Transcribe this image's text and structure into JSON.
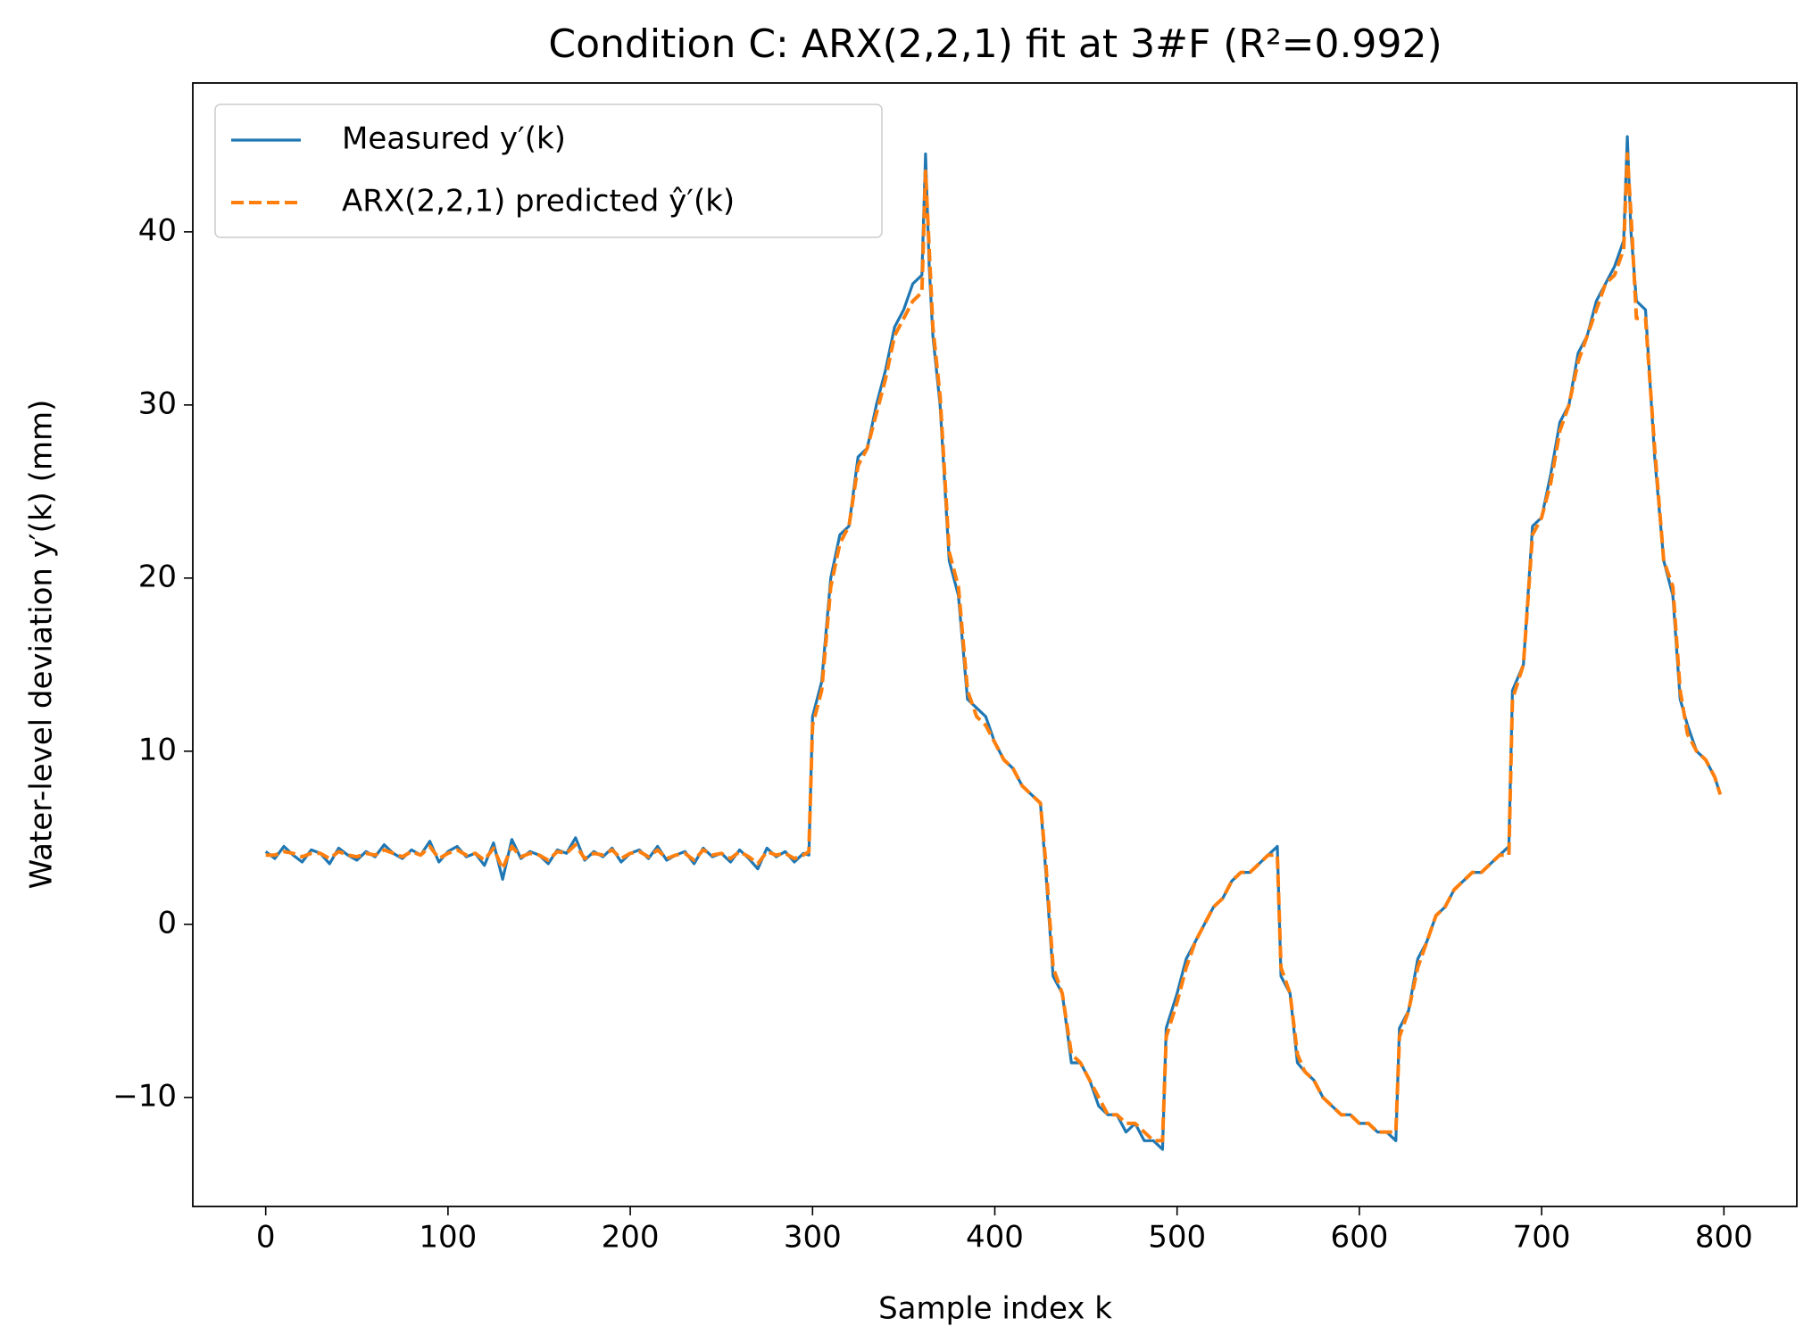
{
  "chart_data": {
    "type": "line",
    "title": "Condition C: ARX(2,2,1) fit at 3#F (R²=0.992)",
    "xlabel": "Sample index k",
    "ylabel": "Water-level deviation y′(k) (mm)",
    "legend": "upper left",
    "x": [
      0,
      5,
      10,
      15,
      20,
      25,
      30,
      35,
      40,
      45,
      50,
      55,
      60,
      65,
      70,
      75,
      80,
      85,
      90,
      95,
      100,
      105,
      110,
      115,
      120,
      125,
      130,
      135,
      140,
      145,
      150,
      155,
      160,
      165,
      170,
      175,
      180,
      185,
      190,
      195,
      200,
      205,
      210,
      215,
      220,
      225,
      230,
      235,
      240,
      245,
      250,
      255,
      260,
      265,
      270,
      275,
      280,
      285,
      290,
      295,
      298,
      300,
      305,
      310,
      315,
      320,
      325,
      330,
      335,
      340,
      345,
      350,
      355,
      360,
      362,
      364,
      366,
      370,
      375,
      380,
      385,
      390,
      395,
      400,
      405,
      410,
      415,
      420,
      425,
      428,
      432,
      437,
      442,
      447,
      452,
      457,
      462,
      467,
      472,
      477,
      482,
      487,
      492,
      494,
      500,
      505,
      510,
      515,
      520,
      525,
      530,
      535,
      540,
      545,
      550,
      555,
      557,
      562,
      566,
      570,
      575,
      580,
      585,
      590,
      595,
      600,
      605,
      610,
      615,
      620,
      622,
      627,
      632,
      637,
      642,
      647,
      652,
      657,
      662,
      667,
      672,
      677,
      682,
      684,
      690,
      695,
      700,
      705,
      710,
      715,
      720,
      725,
      730,
      735,
      740,
      745,
      747,
      749,
      752,
      757,
      762,
      767,
      772,
      776,
      780,
      785,
      790,
      795,
      798
    ],
    "series": [
      {
        "name": "Measured y′(k)",
        "color": "#1f77b4",
        "linestyle": "solid",
        "values": [
          4.2,
          3.8,
          4.5,
          4.0,
          3.6,
          4.3,
          4.1,
          3.5,
          4.4,
          4.0,
          3.7,
          4.2,
          3.9,
          4.6,
          4.1,
          3.8,
          4.3,
          4.0,
          4.8,
          3.6,
          4.2,
          4.5,
          3.9,
          4.1,
          3.4,
          4.7,
          2.6,
          4.9,
          3.8,
          4.2,
          4.0,
          3.5,
          4.3,
          4.1,
          5.0,
          3.7,
          4.2,
          3.9,
          4.4,
          3.6,
          4.1,
          4.3,
          3.8,
          4.5,
          3.7,
          4.0,
          4.2,
          3.5,
          4.4,
          3.9,
          4.1,
          3.6,
          4.3,
          3.8,
          3.2,
          4.4,
          3.9,
          4.2,
          3.6,
          4.1,
          4.0,
          12.0,
          14.0,
          20.0,
          22.5,
          23.0,
          27.0,
          27.5,
          30.0,
          32.0,
          34.5,
          35.5,
          37.0,
          37.5,
          44.5,
          38.0,
          34.0,
          30.0,
          21.0,
          19.0,
          13.0,
          12.5,
          12.0,
          10.5,
          9.5,
          9.0,
          8.0,
          7.5,
          7.0,
          3.0,
          -3.0,
          -4.0,
          -8.0,
          -8.0,
          -9.0,
          -10.5,
          -11.0,
          -11.0,
          -12.0,
          -11.5,
          -12.5,
          -12.5,
          -13.0,
          -6.0,
          -4.0,
          -2.0,
          -1.0,
          0.0,
          1.0,
          1.5,
          2.5,
          3.0,
          3.0,
          3.5,
          4.0,
          4.5,
          -3.0,
          -4.0,
          -8.0,
          -8.5,
          -9.0,
          -10.0,
          -10.5,
          -11.0,
          -11.0,
          -11.5,
          -11.5,
          -12.0,
          -12.0,
          -12.5,
          -6.0,
          -5.0,
          -2.0,
          -1.0,
          0.5,
          1.0,
          2.0,
          2.5,
          3.0,
          3.0,
          3.5,
          4.0,
          4.5,
          13.5,
          15.0,
          23.0,
          23.5,
          26.0,
          29.0,
          30.0,
          33.0,
          34.0,
          36.0,
          37.0,
          38.0,
          39.5,
          45.5,
          40.0,
          36.0,
          35.5,
          27.0,
          21.0,
          19.0,
          13.0,
          11.5,
          10.0,
          9.5,
          8.5,
          7.5
        ]
      },
      {
        "name": "ARX(2,2,1) predicted ŷ′(k)",
        "color": "#ff7f0e",
        "linestyle": "dashed",
        "values": [
          4.0,
          4.0,
          4.2,
          4.1,
          3.9,
          4.1,
          4.1,
          3.8,
          4.2,
          4.0,
          3.9,
          4.1,
          4.0,
          4.3,
          4.1,
          3.9,
          4.2,
          4.0,
          4.5,
          3.8,
          4.1,
          4.3,
          4.0,
          4.1,
          3.7,
          4.4,
          3.2,
          4.5,
          3.9,
          4.1,
          4.0,
          3.7,
          4.2,
          4.1,
          4.6,
          3.8,
          4.1,
          4.0,
          4.3,
          3.8,
          4.1,
          4.2,
          3.9,
          4.3,
          3.8,
          4.0,
          4.1,
          3.7,
          4.3,
          4.0,
          4.1,
          3.8,
          4.2,
          3.9,
          3.5,
          4.2,
          4.0,
          4.1,
          3.8,
          4.0,
          4.2,
          11.5,
          13.5,
          19.5,
          22.0,
          23.0,
          26.5,
          27.5,
          29.5,
          31.5,
          34.0,
          35.0,
          36.0,
          36.5,
          43.5,
          39.0,
          34.5,
          30.5,
          21.5,
          19.5,
          13.5,
          12.0,
          11.5,
          10.5,
          9.5,
          9.0,
          8.0,
          7.5,
          7.0,
          3.5,
          -2.5,
          -4.0,
          -7.5,
          -8.0,
          -9.0,
          -10.0,
          -11.0,
          -11.0,
          -11.5,
          -11.5,
          -12.0,
          -12.5,
          -12.5,
          -6.5,
          -4.5,
          -2.5,
          -1.0,
          0.0,
          1.0,
          1.5,
          2.5,
          3.0,
          3.0,
          3.5,
          4.0,
          4.0,
          -2.5,
          -4.0,
          -7.5,
          -8.5,
          -9.0,
          -10.0,
          -10.5,
          -11.0,
          -11.0,
          -11.5,
          -11.5,
          -12.0,
          -12.0,
          -12.0,
          -6.5,
          -5.0,
          -2.5,
          -1.0,
          0.5,
          1.0,
          2.0,
          2.5,
          3.0,
          3.0,
          3.5,
          4.0,
          4.0,
          13.0,
          15.0,
          22.5,
          23.5,
          25.5,
          28.5,
          30.0,
          32.5,
          34.0,
          35.5,
          37.0,
          37.5,
          39.0,
          44.5,
          41.0,
          35.0,
          35.0,
          27.5,
          21.0,
          19.5,
          13.5,
          11.0,
          10.0,
          9.5,
          8.5,
          7.5
        ]
      }
    ],
    "xlim": [
      -40,
      840
    ],
    "xticks": [
      0,
      100,
      200,
      300,
      400,
      500,
      600,
      700,
      800
    ],
    "ylim": [
      -16.3,
      48.6
    ],
    "yticks": [
      {
        "value": -10,
        "label": "−10"
      },
      0,
      10,
      20,
      30,
      40
    ]
  }
}
